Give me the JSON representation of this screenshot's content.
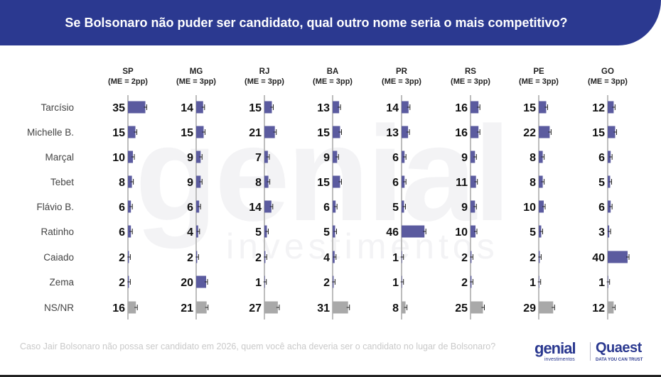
{
  "header": {
    "title": "Se Bolsonaro não puder ser candidato, qual outro nome seria o mais competitivo?"
  },
  "watermark": {
    "main": "genial",
    "sub": "investimentos"
  },
  "footnote": "Caso Jair Bolsonaro não possa ser candidato em 2026, quem você acha deveria ser o candidato no lugar de Bolsonaro?",
  "logos": {
    "genial": "genial",
    "genial_sub": "investimentos",
    "quaest": "Quaest",
    "quaest_sub": "DATA YOU CAN TRUST"
  },
  "colors": {
    "header": "#2b3990",
    "candidate_bar": "#5b5b9f",
    "nsnr_bar": "#a9a9a9",
    "axis": "#bdbdbd"
  },
  "chart_data": {
    "type": "bar",
    "title": "Se Bolsonaro não puder ser candidato, qual outro nome seria o mais competitivo?",
    "categories": [
      "Tarcísio",
      "Michelle B.",
      "Marçal",
      "Tebet",
      "Flávio B.",
      "Ratinho",
      "Caiado",
      "Zema",
      "NS/NR"
    ],
    "series": [
      {
        "name": "SP",
        "subtitle": "(ME = 2pp)",
        "values": [
          35,
          15,
          10,
          8,
          6,
          6,
          2,
          2,
          16
        ]
      },
      {
        "name": "MG",
        "subtitle": "(ME = 3pp)",
        "values": [
          14,
          15,
          9,
          9,
          6,
          4,
          2,
          20,
          21
        ]
      },
      {
        "name": "RJ",
        "subtitle": "(ME = 3pp)",
        "values": [
          15,
          21,
          7,
          8,
          14,
          5,
          2,
          1,
          27
        ]
      },
      {
        "name": "BA",
        "subtitle": "(ME = 3pp)",
        "values": [
          13,
          15,
          9,
          15,
          6,
          5,
          4,
          2,
          31
        ]
      },
      {
        "name": "PR",
        "subtitle": "(ME = 3pp)",
        "values": [
          14,
          13,
          6,
          6,
          5,
          46,
          1,
          1,
          8
        ]
      },
      {
        "name": "RS",
        "subtitle": "(ME = 3pp)",
        "values": [
          16,
          16,
          9,
          11,
          9,
          10,
          2,
          2,
          25
        ]
      },
      {
        "name": "PE",
        "subtitle": "(ME = 3pp)",
        "values": [
          15,
          22,
          8,
          8,
          10,
          5,
          2,
          1,
          29
        ]
      },
      {
        "name": "GO",
        "subtitle": "(ME = 3pp)",
        "values": [
          12,
          15,
          6,
          5,
          6,
          3,
          40,
          1,
          12
        ]
      }
    ],
    "unit": "%",
    "legend": "none",
    "grid": false
  }
}
